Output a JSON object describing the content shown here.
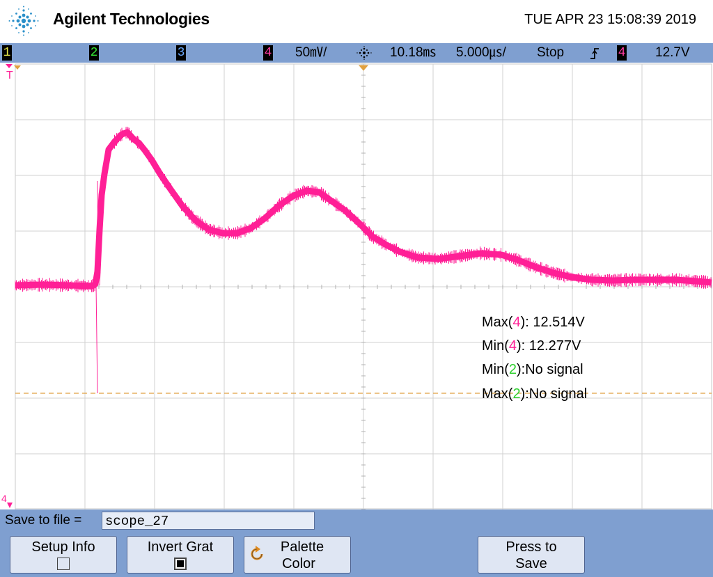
{
  "header": {
    "brand": "Agilent Technologies",
    "timestamp": "TUE APR 23 15:08:39 2019",
    "logo_icon": "agilent-spark-logo"
  },
  "status_bar": {
    "ch1_label": "1",
    "ch2_label": "2",
    "ch3_label": "3",
    "ch4_label": "4",
    "ch4_scale": "50㎷/",
    "acq_icon": "acquisition-spark-icon",
    "time_delay": "10.18㎳",
    "time_scale": "5.000㎲/",
    "run_state": "Stop",
    "trigger_slope_icon": "trigger-slope-icon",
    "trigger_source": "4",
    "trigger_level": "12.7V"
  },
  "screen": {
    "trigger_marker": "T",
    "ch4_ground_marker": "4"
  },
  "measurements": [
    {
      "prefix": "Max(",
      "channel": "4",
      "suffix": "): 12.514V",
      "color": "#ff1f96"
    },
    {
      "prefix": "Min(",
      "channel": "4",
      "suffix": "): 12.277V",
      "color": "#ff1f96"
    },
    {
      "prefix": "Min(",
      "channel": "2",
      "suffix": "):No signal",
      "color": "#2fd12f"
    },
    {
      "prefix": "Max(",
      "channel": "2",
      "suffix": "):No signal",
      "color": "#2fd12f"
    }
  ],
  "bottom": {
    "save_label": "Save to file =",
    "filename": "scope_27",
    "setup_info_label": "Setup Info",
    "invert_grat_label": "Invert Grat",
    "palette_line1": "Palette",
    "palette_line2": "Color",
    "press_line1": "Press to",
    "press_line2": "Save"
  },
  "colors": {
    "trace_ch4": "#ff1f96",
    "trigger_level_line": "#e0a040",
    "panel_blue": "#7f9fd0"
  }
}
